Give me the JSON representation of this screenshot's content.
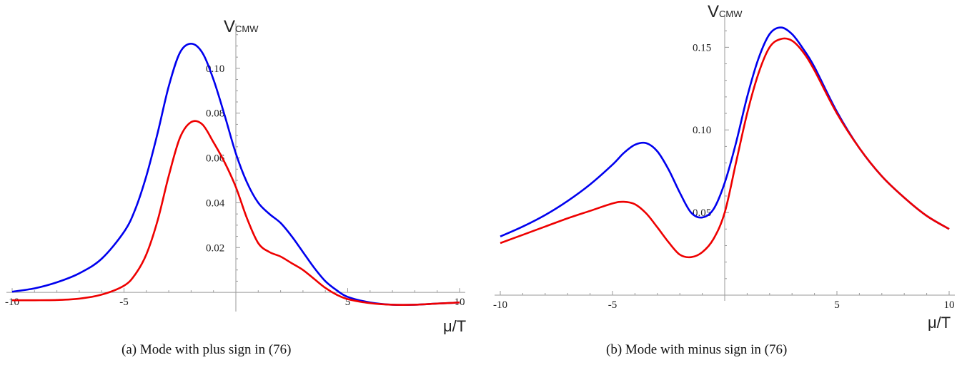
{
  "chart_data": [
    {
      "type": "line",
      "caption": "(a) Mode with plus sign in (76)",
      "xlabel": "μ/T",
      "ylabel_main": "V",
      "ylabel_sub": "CMW",
      "xlim": [
        -10,
        10
      ],
      "ylim": [
        -0.006,
        0.12
      ],
      "x_ticks": [
        -10,
        -5,
        5,
        10
      ],
      "x_tick_labels": [
        "-10",
        "-5",
        "5",
        "10"
      ],
      "y_ticks": [
        0.02,
        0.04,
        0.06,
        0.08,
        0.1
      ],
      "y_tick_labels": [
        "0.02",
        "0.04",
        "0.06",
        "0.08",
        "0.10"
      ],
      "grid": false,
      "series": [
        {
          "color": "#0000ee",
          "x": [
            -10,
            -9,
            -8,
            -7,
            -6,
            -5,
            -4.5,
            -4,
            -3.5,
            -3,
            -2.5,
            -2,
            -1.5,
            -1,
            -0.5,
            0,
            0.5,
            1,
            1.5,
            2,
            2.5,
            3,
            3.5,
            4,
            4.5,
            5,
            6,
            7,
            8,
            9,
            10
          ],
          "y": [
            0.0003,
            0.0018,
            0.0045,
            0.0085,
            0.015,
            0.027,
            0.037,
            0.052,
            0.071,
            0.092,
            0.107,
            0.111,
            0.107,
            0.095,
            0.079,
            0.062,
            0.049,
            0.04,
            0.035,
            0.031,
            0.025,
            0.018,
            0.011,
            0.005,
            0.001,
            -0.002,
            -0.0045,
            -0.0055,
            -0.0055,
            -0.005,
            -0.0045
          ]
        },
        {
          "color": "#ee0000",
          "x": [
            -10,
            -9,
            -8,
            -7,
            -6,
            -5,
            -4.5,
            -4,
            -3.5,
            -3,
            -2.5,
            -2,
            -1.5,
            -1,
            -0.5,
            0,
            0.5,
            1,
            1.5,
            2,
            2.5,
            3,
            3.5,
            4,
            4.5,
            5,
            6,
            7,
            8,
            9,
            10
          ],
          "y": [
            -0.0035,
            -0.0035,
            -0.0034,
            -0.0028,
            -0.001,
            0.003,
            0.008,
            0.017,
            0.032,
            0.052,
            0.069,
            0.076,
            0.075,
            0.067,
            0.058,
            0.047,
            0.033,
            0.022,
            0.018,
            0.016,
            0.013,
            0.01,
            0.006,
            0.002,
            -0.001,
            -0.003,
            -0.0048,
            -0.0055,
            -0.0055,
            -0.005,
            -0.0045
          ]
        }
      ]
    },
    {
      "type": "line",
      "caption": "(b) Mode with minus sign in (76)",
      "xlabel": "μ/T",
      "ylabel_main": "V",
      "ylabel_sub": "CMW",
      "xlim": [
        -10,
        10
      ],
      "ylim": [
        0.0,
        0.17
      ],
      "x_ticks": [
        -10,
        -5,
        5,
        10
      ],
      "x_tick_labels": [
        "-10",
        "-5",
        "5",
        "10"
      ],
      "y_ticks": [
        0.05,
        0.1,
        0.15
      ],
      "y_tick_labels": [
        "0.05",
        "0.10",
        "0.15"
      ],
      "grid": false,
      "series": [
        {
          "color": "#0000ee",
          "x": [
            -10,
            -9,
            -8,
            -7,
            -6,
            -5,
            -4.5,
            -4,
            -3.5,
            -3,
            -2.5,
            -2,
            -1.5,
            -1,
            -0.5,
            0,
            0.5,
            1,
            1.5,
            2,
            2.5,
            3,
            3.5,
            4,
            5,
            6,
            7,
            8,
            9,
            10
          ],
          "y": [
            0.0355,
            0.0415,
            0.0485,
            0.057,
            0.067,
            0.079,
            0.086,
            0.091,
            0.092,
            0.087,
            0.076,
            0.062,
            0.05,
            0.047,
            0.052,
            0.068,
            0.092,
            0.12,
            0.143,
            0.158,
            0.162,
            0.158,
            0.149,
            0.138,
            0.111,
            0.089,
            0.072,
            0.059,
            0.048,
            0.04
          ]
        },
        {
          "color": "#ee0000",
          "x": [
            -10,
            -9,
            -8,
            -7,
            -6,
            -5,
            -4.5,
            -4,
            -3.5,
            -3,
            -2.5,
            -2,
            -1.5,
            -1,
            -0.5,
            0,
            0.5,
            1,
            1.5,
            2,
            2.5,
            3,
            3.5,
            4,
            5,
            6,
            7,
            8,
            9,
            10
          ],
          "y": [
            0.0315,
            0.0365,
            0.0415,
            0.0465,
            0.051,
            0.0555,
            0.0565,
            0.055,
            0.0495,
            0.041,
            0.032,
            0.0245,
            0.023,
            0.026,
            0.034,
            0.05,
            0.08,
            0.11,
            0.134,
            0.15,
            0.155,
            0.154,
            0.147,
            0.136,
            0.11,
            0.089,
            0.072,
            0.059,
            0.048,
            0.04
          ]
        }
      ]
    }
  ]
}
